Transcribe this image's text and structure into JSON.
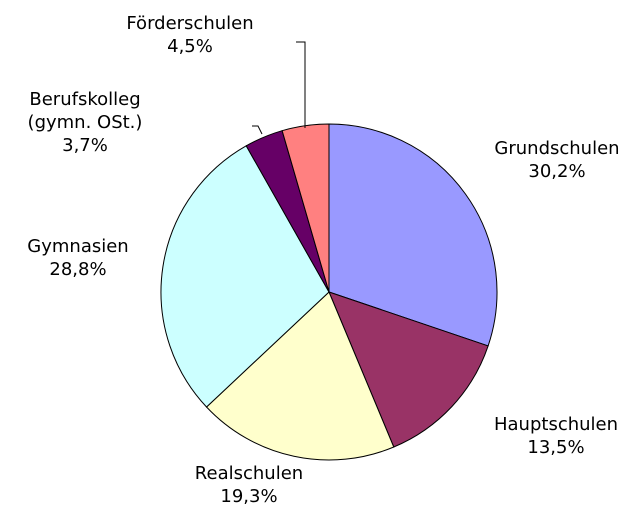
{
  "chart_data": {
    "type": "pie",
    "categories": [
      "Grundschulen",
      "Hauptschulen",
      "Realschulen",
      "Gymnasien",
      "Berufskolleg (gymn. OSt.)",
      "Förderschulen"
    ],
    "values": [
      30.2,
      13.5,
      19.3,
      28.8,
      3.7,
      4.5
    ],
    "value_labels": [
      "30,2%",
      "13,5%",
      "19,3%",
      "28,8%",
      "3,7%",
      "4,5%"
    ],
    "colors": [
      "#9999ff",
      "#993366",
      "#ffffcc",
      "#ccffff",
      "#660066",
      "#ff8080"
    ]
  }
}
